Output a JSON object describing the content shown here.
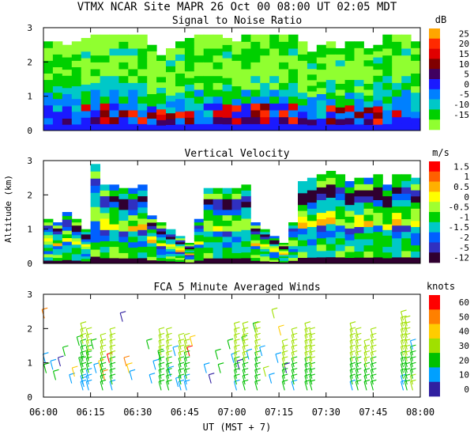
{
  "header": "VTMX  NCAR Site  MAPR 26 Oct 00  08:00 UT  02:05  MDT",
  "x_axis": {
    "ticks": [
      "06:00",
      "06:15",
      "06:30",
      "06:45",
      "07:00",
      "07:15",
      "07:30",
      "07:45",
      "08:00"
    ],
    "label": "UT  (MST + 7)"
  },
  "y_axis": {
    "label": "Altitude (km)"
  },
  "chart_data": [
    {
      "type": "heatmap",
      "title": "Signal to Noise Ratio",
      "units": "dB",
      "ylim": [
        0,
        3
      ],
      "yticks": [
        "0",
        "1",
        "2",
        "3"
      ],
      "colorbar": [
        {
          "label": "25",
          "color": "#ffa500"
        },
        {
          "label": "20",
          "color": "#ff2a00"
        },
        {
          "label": "15",
          "color": "#e00000"
        },
        {
          "label": "10",
          "color": "#800000"
        },
        {
          "label": "5",
          "color": "#400060"
        },
        {
          "label": "0",
          "color": "#1a1aff"
        },
        {
          "label": "-5",
          "color": "#0080ff"
        },
        {
          "label": "-10",
          "color": "#00c8c8"
        },
        {
          "label": "-15",
          "color": "#00d000"
        },
        {
          "label": "",
          "color": "#90ff30"
        }
      ],
      "top_coverage_km": [
        2.6,
        2.6,
        2.5,
        2.6,
        2.7,
        2.8,
        2.8,
        2.8,
        2.8,
        2.8,
        2.8,
        2.5,
        2.2,
        2.4,
        2.6,
        2.7,
        2.8,
        2.8,
        2.8,
        2.7,
        2.6,
        2.8,
        2.8,
        2.8,
        2.8,
        2.8,
        2.8,
        2.6,
        2.3,
        2.5,
        2.6,
        2.4,
        2.6,
        2.6,
        2.4,
        2.5,
        2.8,
        2.8,
        2.8,
        2.6
      ]
    },
    {
      "type": "heatmap",
      "title": "Vertical Velocity",
      "units": "m/s",
      "ylim": [
        0,
        3
      ],
      "yticks": [
        "0",
        "1",
        "2",
        "3"
      ],
      "colorbar": [
        {
          "label": "1.5",
          "color": "#ff0000"
        },
        {
          "label": "1",
          "color": "#ff6000"
        },
        {
          "label": "0.5",
          "color": "#ffb000"
        },
        {
          "label": "0",
          "color": "#ffff00"
        },
        {
          "label": "-0.5",
          "color": "#a0ff30"
        },
        {
          "label": "-1",
          "color": "#00d000"
        },
        {
          "label": "-1.5",
          "color": "#00c8c8"
        },
        {
          "label": "-2",
          "color": "#0060ff"
        },
        {
          "label": "-5",
          "color": "#3030c0"
        },
        {
          "label": "-12",
          "color": "#300030"
        }
      ],
      "top_coverage_km": [
        1.3,
        1.2,
        1.5,
        1.3,
        1.0,
        2.9,
        2.3,
        2.3,
        2.2,
        2.2,
        2.3,
        1.4,
        1.2,
        1.0,
        0.8,
        0.6,
        1.3,
        2.2,
        2.2,
        2.2,
        2.2,
        2.3,
        1.2,
        1.0,
        0.8,
        0.6,
        1.2,
        2.4,
        2.5,
        2.6,
        2.7,
        2.6,
        2.4,
        2.5,
        2.5,
        2.6,
        2.3,
        2.6,
        2.6,
        2.5
      ]
    },
    {
      "type": "wind_barbs",
      "title": "FCA 5 Minute Averaged Winds",
      "units": "knots",
      "ylim": [
        0,
        3
      ],
      "yticks": [
        "0",
        "1",
        "2",
        "3"
      ],
      "colorbar": [
        {
          "label": "60",
          "color": "#ff0000"
        },
        {
          "label": "50",
          "color": "#ff8000"
        },
        {
          "label": "40",
          "color": "#ffcc00"
        },
        {
          "label": "30",
          "color": "#a0e000"
        },
        {
          "label": "20",
          "color": "#00c000"
        },
        {
          "label": "10",
          "color": "#00a0ff"
        },
        {
          "label": "0",
          "color": "#3020a0"
        }
      ],
      "barbs": [
        {
          "t": 0.1,
          "alt": 2.3,
          "speed": 55
        },
        {
          "t": 0.2,
          "alt": 1.0,
          "speed": 15
        },
        {
          "t": 0.3,
          "alt": 0.7,
          "speed": 20
        },
        {
          "t": 1.0,
          "alt": 0.8,
          "speed": 10
        },
        {
          "t": 1.3,
          "alt": 0.5,
          "speed": 20
        },
        {
          "t": 1.8,
          "alt": 0.9,
          "speed": 5
        },
        {
          "t": 2.3,
          "alt": 1.2,
          "speed": 20
        },
        {
          "t": 3.0,
          "alt": 0.4,
          "speed": 10
        },
        {
          "t": 3.3,
          "alt": 0.6,
          "speed": 45
        },
        {
          "t": 3.8,
          "alt": 1.5,
          "speed": 20
        },
        {
          "t": 4.0,
          "alt": 0.9,
          "speed": 25
        },
        {
          "t": 4.3,
          "alt": 0.3,
          "speed": 10
        },
        {
          "t": 4.8,
          "alt": 1.1,
          "speed": 30
        },
        {
          "t": 5.3,
          "alt": 1.4,
          "speed": 25
        },
        {
          "t": 5.6,
          "alt": 0.7,
          "speed": 15
        },
        {
          "t": 6.1,
          "alt": 0.8,
          "speed": 40
        },
        {
          "t": 6.5,
          "alt": 0.5,
          "speed": 50
        },
        {
          "t": 7.0,
          "alt": 1.0,
          "speed": 60
        },
        {
          "t": 8.4,
          "alt": 2.2,
          "speed": 5
        },
        {
          "t": 8.8,
          "alt": 0.9,
          "speed": 55
        },
        {
          "t": 9.1,
          "alt": 0.7,
          "speed": 40
        },
        {
          "t": 9.4,
          "alt": 0.5,
          "speed": 10
        },
        {
          "t": 11.2,
          "alt": 1.4,
          "speed": 25
        },
        {
          "t": 11.5,
          "alt": 0.4,
          "speed": 10
        },
        {
          "t": 11.9,
          "alt": 0.8,
          "speed": 15
        },
        {
          "t": 12.4,
          "alt": 1.1,
          "speed": 20
        },
        {
          "t": 13.5,
          "alt": 0.6,
          "speed": 15
        },
        {
          "t": 14.0,
          "alt": 1.2,
          "speed": 15
        },
        {
          "t": 14.3,
          "alt": 0.3,
          "speed": 10
        },
        {
          "t": 15.5,
          "alt": 1.2,
          "speed": 60
        },
        {
          "t": 15.8,
          "alt": 1.5,
          "speed": 45
        },
        {
          "t": 17.3,
          "alt": 0.7,
          "speed": 10
        },
        {
          "t": 17.8,
          "alt": 0.4,
          "speed": 5
        },
        {
          "t": 18.5,
          "alt": 1.1,
          "speed": 20
        },
        {
          "t": 18.8,
          "alt": 0.7,
          "speed": 25
        },
        {
          "t": 19.8,
          "alt": 1.4,
          "speed": 20
        },
        {
          "t": 20.2,
          "alt": 1.0,
          "speed": 10
        },
        {
          "t": 20.8,
          "alt": 0.8,
          "speed": 5
        },
        {
          "t": 21.3,
          "alt": 1.5,
          "speed": 20
        },
        {
          "t": 21.8,
          "alt": 1.1,
          "speed": 10
        },
        {
          "t": 22.5,
          "alt": 1.9,
          "speed": 25
        },
        {
          "t": 23.2,
          "alt": 1.2,
          "speed": 10
        },
        {
          "t": 23.6,
          "alt": 0.6,
          "speed": 30
        },
        {
          "t": 24.2,
          "alt": 0.4,
          "speed": 10
        },
        {
          "t": 24.5,
          "alt": 2.3,
          "speed": 30
        },
        {
          "t": 24.9,
          "alt": 1.0,
          "speed": 15
        },
        {
          "t": 25.2,
          "alt": 1.8,
          "speed": 40
        },
        {
          "t": 25.8,
          "alt": 0.7,
          "speed": 5
        }
      ],
      "profiles": [
        {
          "t": 4.2,
          "speeds": [
            15,
            15,
            20,
            20,
            20,
            25,
            25,
            25,
            30,
            30,
            30
          ]
        },
        {
          "t": 4.8,
          "speeds": [
            10,
            15,
            15,
            20,
            20,
            25,
            25,
            30,
            30,
            30
          ]
        },
        {
          "t": 6.3,
          "speeds": [
            20,
            20,
            25,
            25,
            25,
            30,
            30,
            30,
            30
          ]
        },
        {
          "t": 7.3,
          "speeds": [
            15,
            20,
            20,
            25,
            25,
            30,
            30,
            30,
            30,
            30
          ]
        },
        {
          "t": 12.5,
          "speeds": [
            20,
            20,
            25,
            25,
            25,
            25,
            30,
            30,
            30,
            30
          ]
        },
        {
          "t": 13.3,
          "speeds": [
            20,
            20,
            25,
            25,
            25,
            30,
            30,
            30,
            30,
            30
          ]
        },
        {
          "t": 14.6,
          "speeds": [
            15,
            20,
            20,
            25,
            25,
            30,
            30,
            30,
            30
          ]
        },
        {
          "t": 15.2,
          "speeds": [
            15,
            15,
            20,
            20,
            25,
            25,
            30,
            30,
            30
          ]
        },
        {
          "t": 20.5,
          "speeds": [
            15,
            20,
            20,
            25,
            25,
            30,
            30,
            30,
            30,
            30,
            30
          ]
        },
        {
          "t": 21.4,
          "speeds": [
            20,
            20,
            25,
            25,
            25,
            30,
            30,
            30,
            30,
            30,
            30
          ]
        },
        {
          "t": 22.7,
          "speeds": [
            20,
            20,
            20,
            25,
            25,
            25,
            30,
            30,
            30,
            30,
            30
          ]
        },
        {
          "t": 25.6,
          "speeds": [
            20,
            20,
            25,
            25,
            30,
            30,
            30,
            30
          ]
        },
        {
          "t": 26.6,
          "speeds": [
            15,
            20,
            20,
            25,
            25,
            30,
            30,
            30,
            30,
            30
          ]
        },
        {
          "t": 28.0,
          "speeds": [
            20,
            20,
            25,
            25,
            25,
            30,
            30,
            30,
            30,
            30,
            30
          ]
        },
        {
          "t": 28.5,
          "speeds": [
            20,
            25,
            25,
            25,
            30,
            30,
            30,
            30,
            30,
            30
          ]
        },
        {
          "t": 32.8,
          "speeds": [
            15,
            20,
            20,
            25,
            25,
            30,
            30,
            30,
            30,
            30,
            30
          ]
        },
        {
          "t": 33.4,
          "speeds": [
            20,
            20,
            25,
            25,
            25,
            30,
            30,
            30,
            30,
            30
          ]
        },
        {
          "t": 34.3,
          "speeds": [
            20,
            25,
            25,
            25,
            30,
            30,
            30,
            30
          ]
        },
        {
          "t": 35.0,
          "speeds": [
            20,
            20,
            25,
            25,
            25,
            30,
            30,
            30,
            30,
            30
          ]
        },
        {
          "t": 38.2,
          "speeds": [
            15,
            15,
            20,
            20,
            25,
            25,
            30,
            30,
            30,
            30,
            30,
            30,
            30
          ]
        },
        {
          "t": 38.6,
          "speeds": [
            20,
            20,
            25,
            25,
            25,
            30,
            30,
            30,
            30,
            30,
            30,
            30
          ]
        },
        {
          "t": 39.2,
          "speeds": [
            30,
            30,
            25,
            25,
            25,
            20,
            20,
            15
          ]
        }
      ]
    }
  ]
}
